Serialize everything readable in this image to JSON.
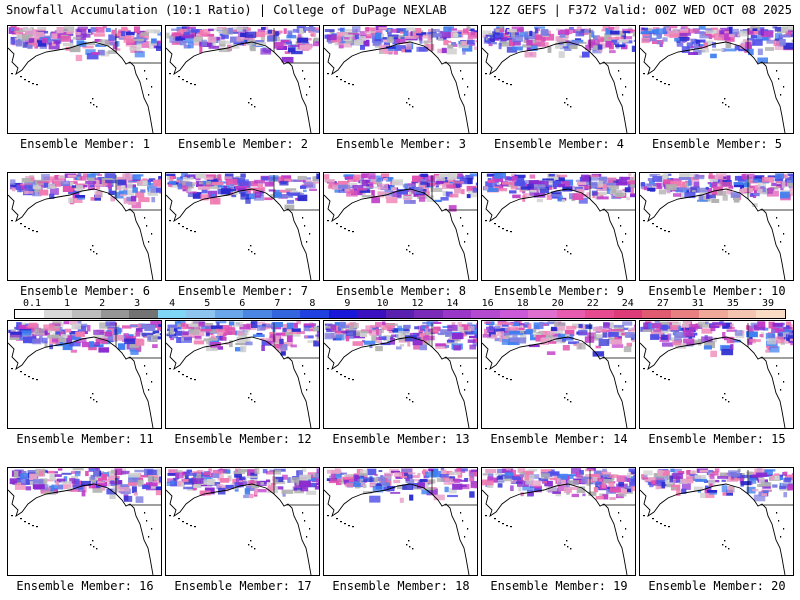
{
  "header": {
    "title": "Snowfall Accumulation (10:1 Ratio) | College of DuPage NEXLAB",
    "run_info": "12Z GEFS | F372 Valid: 00Z WED OCT 08 2025"
  },
  "colorbar": {
    "ticks": [
      "0.1",
      "1",
      "2",
      "3",
      "4",
      "5",
      "6",
      "7",
      "8",
      "9",
      "10",
      "12",
      "14",
      "16",
      "18",
      "20",
      "22",
      "24",
      "27",
      "31",
      "35",
      "39"
    ],
    "colors": [
      "#ffffff",
      "#d9d9d9",
      "#bdbdbd",
      "#969696",
      "#737373",
      "#7fd6f5",
      "#8ec4f0",
      "#6aa7ea",
      "#4b86e3",
      "#3366dd",
      "#2040e0",
      "#1a18d8",
      "#3a10c0",
      "#5a20b0",
      "#7a2ab8",
      "#9a36c8",
      "#b44ad0",
      "#cc5ad8",
      "#e070d0",
      "#e85cb0",
      "#e84a90",
      "#dd3c78",
      "#e05a70",
      "#e87f80",
      "#f0a898",
      "#f5c4b0",
      "#fadcc4"
    ]
  },
  "panels": [
    {
      "label": "Ensemble Member: 1"
    },
    {
      "label": "Ensemble Member: 2"
    },
    {
      "label": "Ensemble Member: 3"
    },
    {
      "label": "Ensemble Member: 4"
    },
    {
      "label": "Ensemble Member: 5"
    },
    {
      "label": "Ensemble Member: 6"
    },
    {
      "label": "Ensemble Member: 7"
    },
    {
      "label": "Ensemble Member: 8"
    },
    {
      "label": "Ensemble Member: 9"
    },
    {
      "label": "Ensemble Member: 10"
    },
    {
      "label": "Ensemble Member: 11"
    },
    {
      "label": "Ensemble Member: 12"
    },
    {
      "label": "Ensemble Member: 13"
    },
    {
      "label": "Ensemble Member: 14"
    },
    {
      "label": "Ensemble Member: 15"
    },
    {
      "label": "Ensemble Member: 16"
    },
    {
      "label": "Ensemble Member: 17"
    },
    {
      "label": "Ensemble Member: 18"
    },
    {
      "label": "Ensemble Member: 19"
    },
    {
      "label": "Ensemble Member: 20"
    }
  ]
}
